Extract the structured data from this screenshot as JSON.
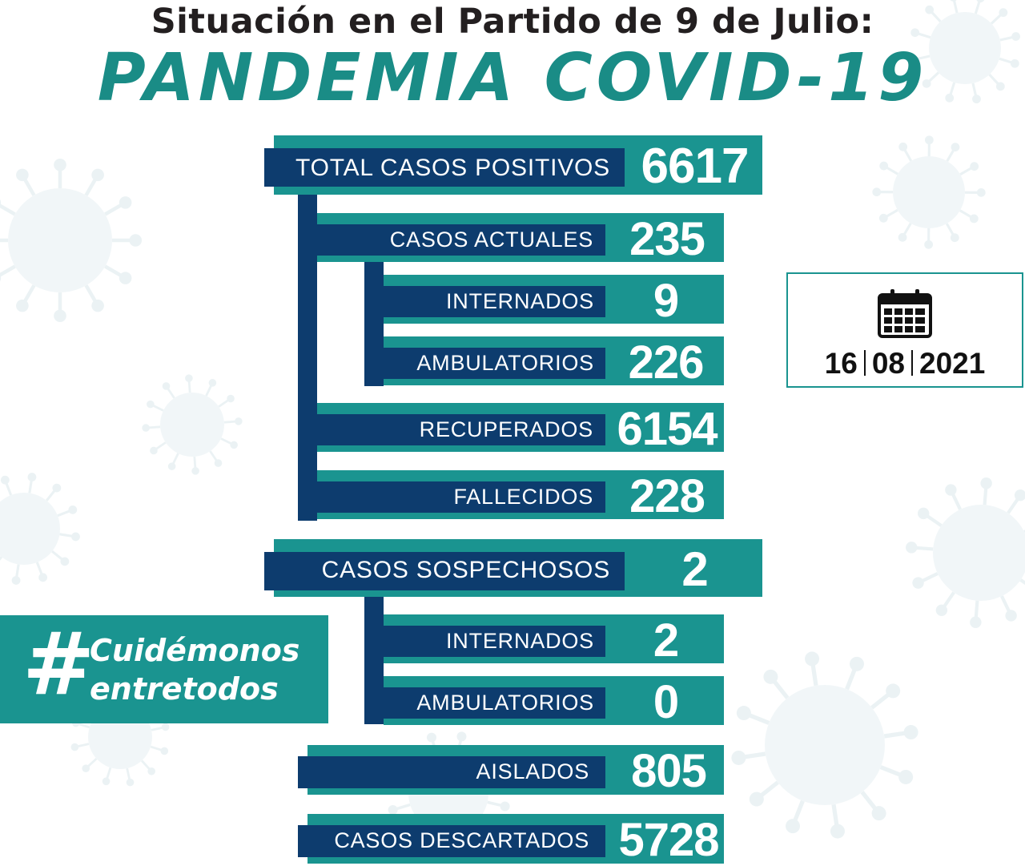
{
  "header": {
    "title": "Situación en el Partido de 9 de Julio:",
    "subtitle": "PANDEMIA COVID-19"
  },
  "stats": {
    "total_positivos": {
      "label": "TOTAL CASOS POSITIVOS",
      "value": "6617"
    },
    "casos_actuales": {
      "label": "CASOS ACTUALES",
      "value": "235"
    },
    "actuales_internados": {
      "label": "INTERNADOS",
      "value": "9"
    },
    "actuales_ambulatorios": {
      "label": "AMBULATORIOS",
      "value": "226"
    },
    "recuperados": {
      "label": "RECUPERADOS",
      "value": "6154"
    },
    "fallecidos": {
      "label": "FALLECIDOS",
      "value": "228"
    },
    "sospechosos": {
      "label": "CASOS SOSPECHOSOS",
      "value": "2"
    },
    "sospechosos_internados": {
      "label": "INTERNADOS",
      "value": "2"
    },
    "sospechosos_ambulatorios": {
      "label": "AMBULATORIOS",
      "value": "0"
    },
    "aislados": {
      "label": "AISLADOS",
      "value": "805"
    },
    "descartados": {
      "label": "CASOS DESCARTADOS",
      "value": "5728"
    }
  },
  "date": {
    "day": "16",
    "month": "08",
    "year": "2021",
    "icon": "calendar-icon"
  },
  "hashtag": {
    "symbol": "#",
    "line1": "Cuidémonos",
    "line2": "entretodos"
  },
  "colors": {
    "teal": "#1a9490",
    "navy": "#0d3c6e",
    "title": "#231f20",
    "accent": "#1a8c86"
  }
}
